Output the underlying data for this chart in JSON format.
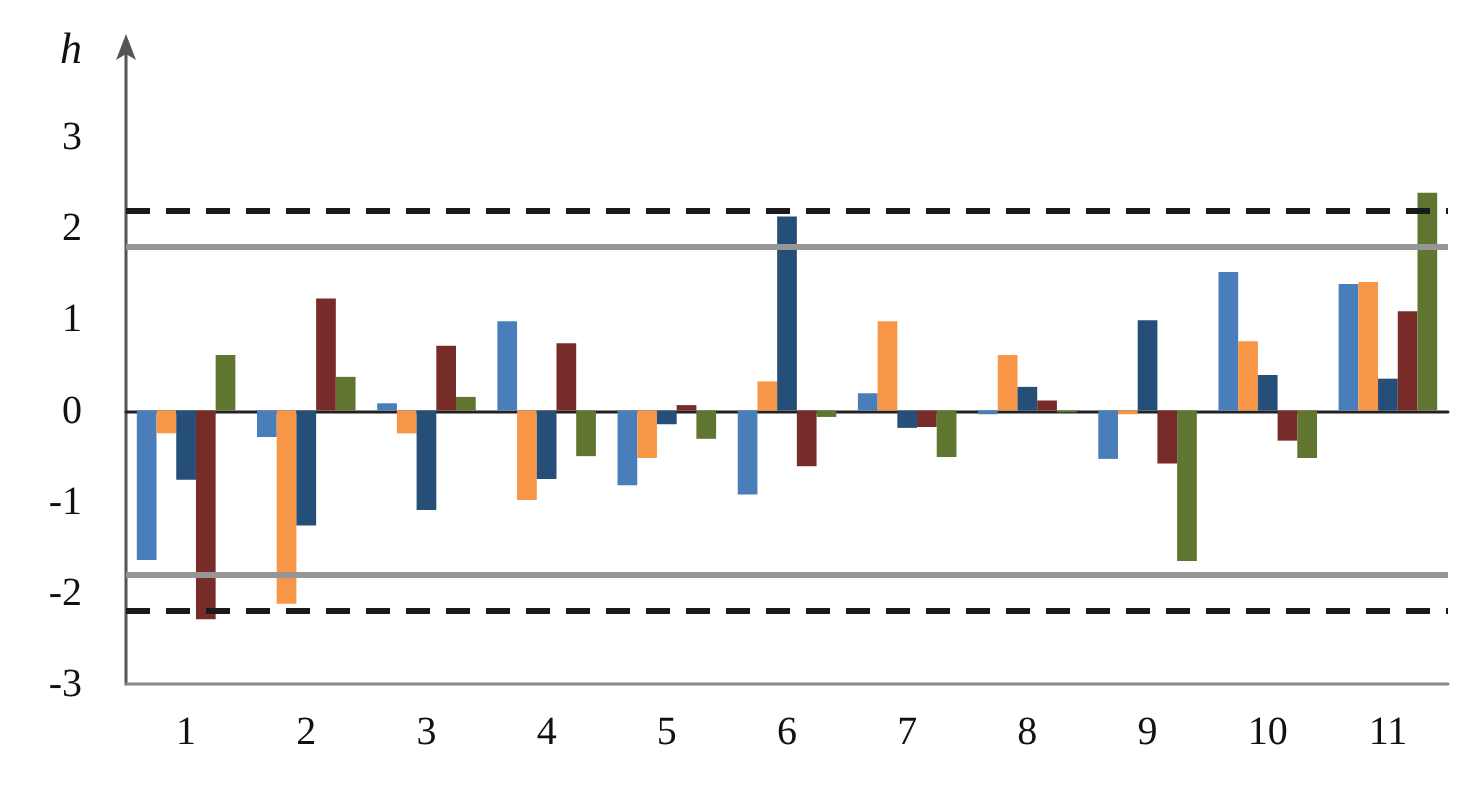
{
  "chart_data": {
    "type": "bar",
    "ylabel": "h",
    "categories": [
      "1",
      "2",
      "3",
      "4",
      "5",
      "6",
      "7",
      "8",
      "9",
      "10",
      "11"
    ],
    "series": [
      {
        "color": "#4a7ebb",
        "values": [
          -1.64,
          -0.29,
          0.08,
          0.98,
          -0.82,
          -0.92,
          0.19,
          -0.04,
          -0.53,
          1.52,
          1.39
        ]
      },
      {
        "color": "#f79646",
        "values": [
          -0.25,
          -2.12,
          -0.25,
          -0.98,
          -0.52,
          0.32,
          0.98,
          0.61,
          -0.04,
          0.76,
          1.41
        ]
      },
      {
        "color": "#254e78",
        "values": [
          -0.76,
          -1.26,
          -1.09,
          -0.75,
          -0.15,
          2.13,
          -0.19,
          0.26,
          0.99,
          0.39,
          0.35
        ]
      },
      {
        "color": "#772c2a",
        "values": [
          -2.29,
          1.23,
          0.71,
          0.74,
          0.06,
          -0.61,
          -0.18,
          0.11,
          -0.58,
          -0.33,
          1.09
        ]
      },
      {
        "color": "#5f7530",
        "values": [
          0.61,
          0.37,
          0.15,
          -0.5,
          -0.31,
          -0.07,
          -0.51,
          -0.02,
          -1.65,
          -0.52,
          2.39
        ]
      }
    ],
    "ylim": [
      -3,
      4
    ],
    "yticks": [
      -3,
      -2,
      -1,
      0,
      1,
      2,
      3
    ],
    "ref_lines": [
      {
        "axis": "y",
        "value": 2.2,
        "color": "#1a1a1a",
        "line_style": "dashed"
      },
      {
        "axis": "y",
        "value": -2.2,
        "color": "#1a1a1a",
        "line_style": "dashed"
      },
      {
        "axis": "y",
        "value": 1.8,
        "color": "#969696",
        "line_style": "solid"
      },
      {
        "axis": "y",
        "value": -1.8,
        "color": "#969696",
        "line_style": "solid"
      }
    ],
    "data_labels": false
  }
}
